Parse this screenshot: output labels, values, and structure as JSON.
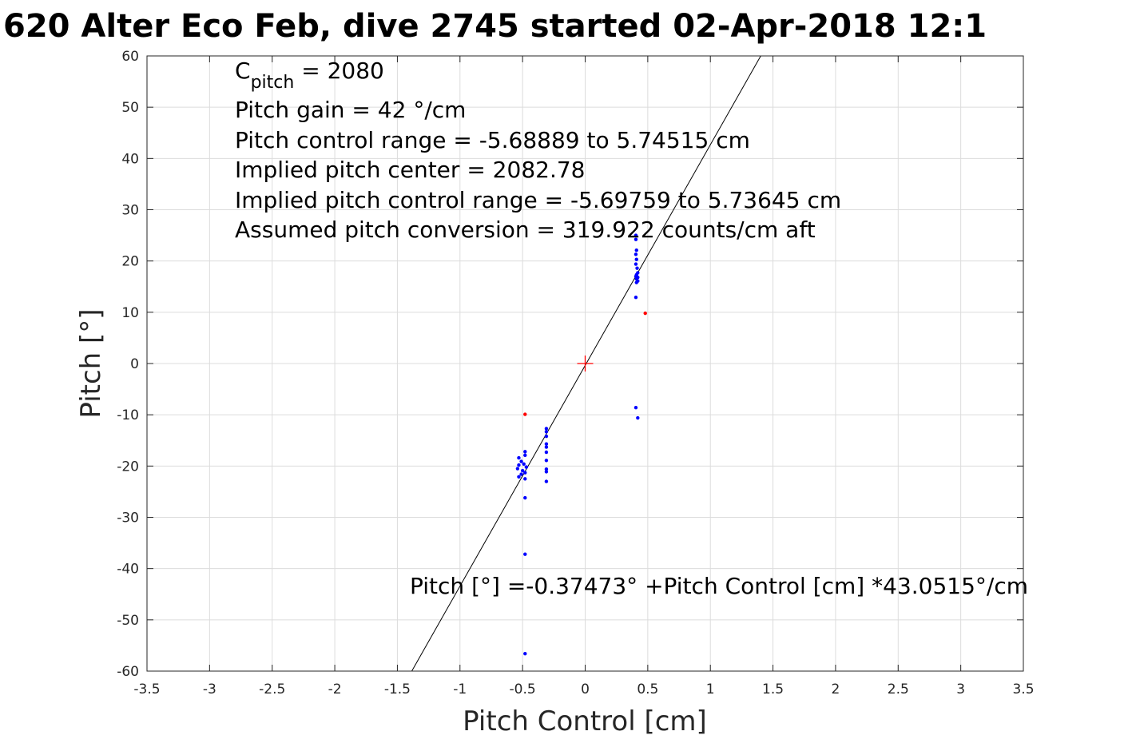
{
  "chart_data": {
    "type": "scatter",
    "title": "620 Alter Eco Feb, dive 2745 started 02-Apr-2018 12:1",
    "xlabel": "Pitch Control [cm]",
    "ylabel": "Pitch [°]",
    "xlim": [
      -3.5,
      3.5
    ],
    "ylim": [
      -60,
      60
    ],
    "grid": true,
    "x_ticks": [
      -3.5,
      -3,
      -2.5,
      -2,
      -1.5,
      -1,
      -0.5,
      0,
      0.5,
      1,
      1.5,
      2,
      2.5,
      3,
      3.5
    ],
    "x_tick_labels": [
      "-3.5",
      "-3",
      "-2.5",
      "-2",
      "-1.5",
      "-1",
      "-0.5",
      "0",
      "0.5",
      "1",
      "1.5",
      "2",
      "2.5",
      "3",
      "3.5"
    ],
    "y_ticks": [
      -60,
      -50,
      -40,
      -30,
      -20,
      -10,
      0,
      10,
      20,
      30,
      40,
      50,
      60
    ],
    "y_tick_labels": [
      "-60",
      "-50",
      "-40",
      "-30",
      "-20",
      "-10",
      "0",
      "10",
      "20",
      "30",
      "40",
      "50",
      "60"
    ],
    "annotation_lines": [
      {
        "main": "C",
        "sub": "pitch",
        "rest": " = 2080"
      },
      {
        "main": "Pitch gain = 42 °/cm"
      },
      {
        "main": "Pitch control range = -5.68889 to 5.74515 cm"
      },
      {
        "main": "Implied pitch center = 2082.78"
      },
      {
        "main": "Implied pitch control range = -5.69759 to 5.73645 cm"
      },
      {
        "main": "Assumed pitch conversion = 319.922 counts/cm aft"
      }
    ],
    "fit_equation": "Pitch [°] =-0.37473° +Pitch Control [cm] *43.0515°/cm",
    "fit_line": {
      "intercept": -0.37473,
      "slope": 43.0515,
      "color": "#000000"
    },
    "center_marker": {
      "x": 0,
      "y": 0,
      "color": "#ff0000"
    },
    "series": [
      {
        "color": "#0000ff",
        "points": [
          [
            0.405,
            25.0
          ],
          [
            0.405,
            24.2
          ],
          [
            0.41,
            22.1
          ],
          [
            0.405,
            21.3
          ],
          [
            0.41,
            20.3
          ],
          [
            0.405,
            19.4
          ],
          [
            0.415,
            18.6
          ],
          [
            0.42,
            17.7
          ],
          [
            0.41,
            17.3
          ],
          [
            0.405,
            17.0
          ],
          [
            0.42,
            16.8
          ],
          [
            0.41,
            16.5
          ],
          [
            0.42,
            16.1
          ],
          [
            0.41,
            15.8
          ],
          [
            0.405,
            12.9
          ],
          [
            0.405,
            -8.6
          ],
          [
            0.42,
            -10.6
          ],
          [
            -0.31,
            -12.7
          ],
          [
            -0.31,
            -13.3
          ],
          [
            -0.31,
            -14.2
          ],
          [
            -0.31,
            -15.7
          ],
          [
            -0.31,
            -16.3
          ],
          [
            -0.31,
            -17.3
          ],
          [
            -0.31,
            -18.9
          ],
          [
            -0.31,
            -20.6
          ],
          [
            -0.31,
            -21.1
          ],
          [
            -0.31,
            -23.0
          ],
          [
            -0.48,
            -17.2
          ],
          [
            -0.48,
            -17.9
          ],
          [
            -0.53,
            -18.4
          ],
          [
            -0.51,
            -19.1
          ],
          [
            -0.49,
            -19.6
          ],
          [
            -0.53,
            -19.8
          ],
          [
            -0.47,
            -20.2
          ],
          [
            -0.54,
            -20.5
          ],
          [
            -0.5,
            -20.9
          ],
          [
            -0.48,
            -21.3
          ],
          [
            -0.51,
            -21.6
          ],
          [
            -0.53,
            -22.1
          ],
          [
            -0.48,
            -22.5
          ],
          [
            -0.48,
            -26.2
          ],
          [
            -0.48,
            -37.2
          ],
          [
            -0.48,
            -56.6
          ]
        ]
      },
      {
        "color": "#ff0000",
        "points": [
          [
            -0.48,
            -9.9
          ],
          [
            0.48,
            9.8
          ]
        ]
      }
    ]
  }
}
